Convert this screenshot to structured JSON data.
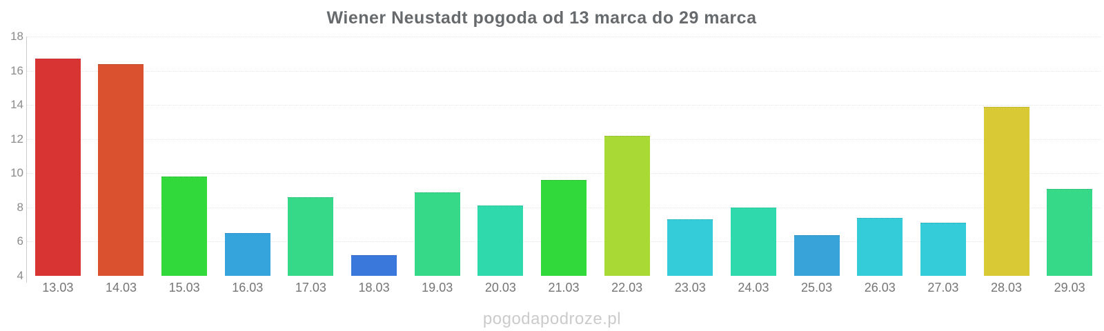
{
  "ui": {
    "watermark": "pogodapodroze.pl"
  },
  "chart_data": {
    "type": "bar",
    "title": "Wiener Neustadt pogoda od 13 marca do 29 marca",
    "xlabel": "",
    "ylabel": "",
    "ylim": [
      4,
      18
    ],
    "yticks": [
      18,
      16,
      14,
      12,
      10,
      8,
      6,
      4
    ],
    "grid": "horizontal-dotted",
    "legend": "none",
    "categories": [
      "13.03",
      "14.03",
      "15.03",
      "16.03",
      "17.03",
      "18.03",
      "19.03",
      "20.03",
      "21.03",
      "22.03",
      "23.03",
      "24.03",
      "25.03",
      "26.03",
      "27.03",
      "28.03",
      "29.03"
    ],
    "values": [
      16.7,
      16.4,
      9.8,
      6.5,
      8.6,
      5.2,
      8.9,
      8.1,
      9.6,
      12.2,
      7.3,
      8.0,
      6.4,
      7.4,
      7.1,
      13.9,
      9.1
    ],
    "bar_colors": [
      "#d93434",
      "#d9512f",
      "#32d93a",
      "#35a3dc",
      "#35d987",
      "#3a78dc",
      "#35d987",
      "#2fd9ac",
      "#32d93a",
      "#a8d935",
      "#35ccd9",
      "#2fd9ab",
      "#38a3d9",
      "#35ccd9",
      "#35ccd9",
      "#d9c935",
      "#35d987"
    ],
    "axis_color": "#cccccc",
    "label_color": "#757575",
    "title_color": "#666a6d"
  }
}
